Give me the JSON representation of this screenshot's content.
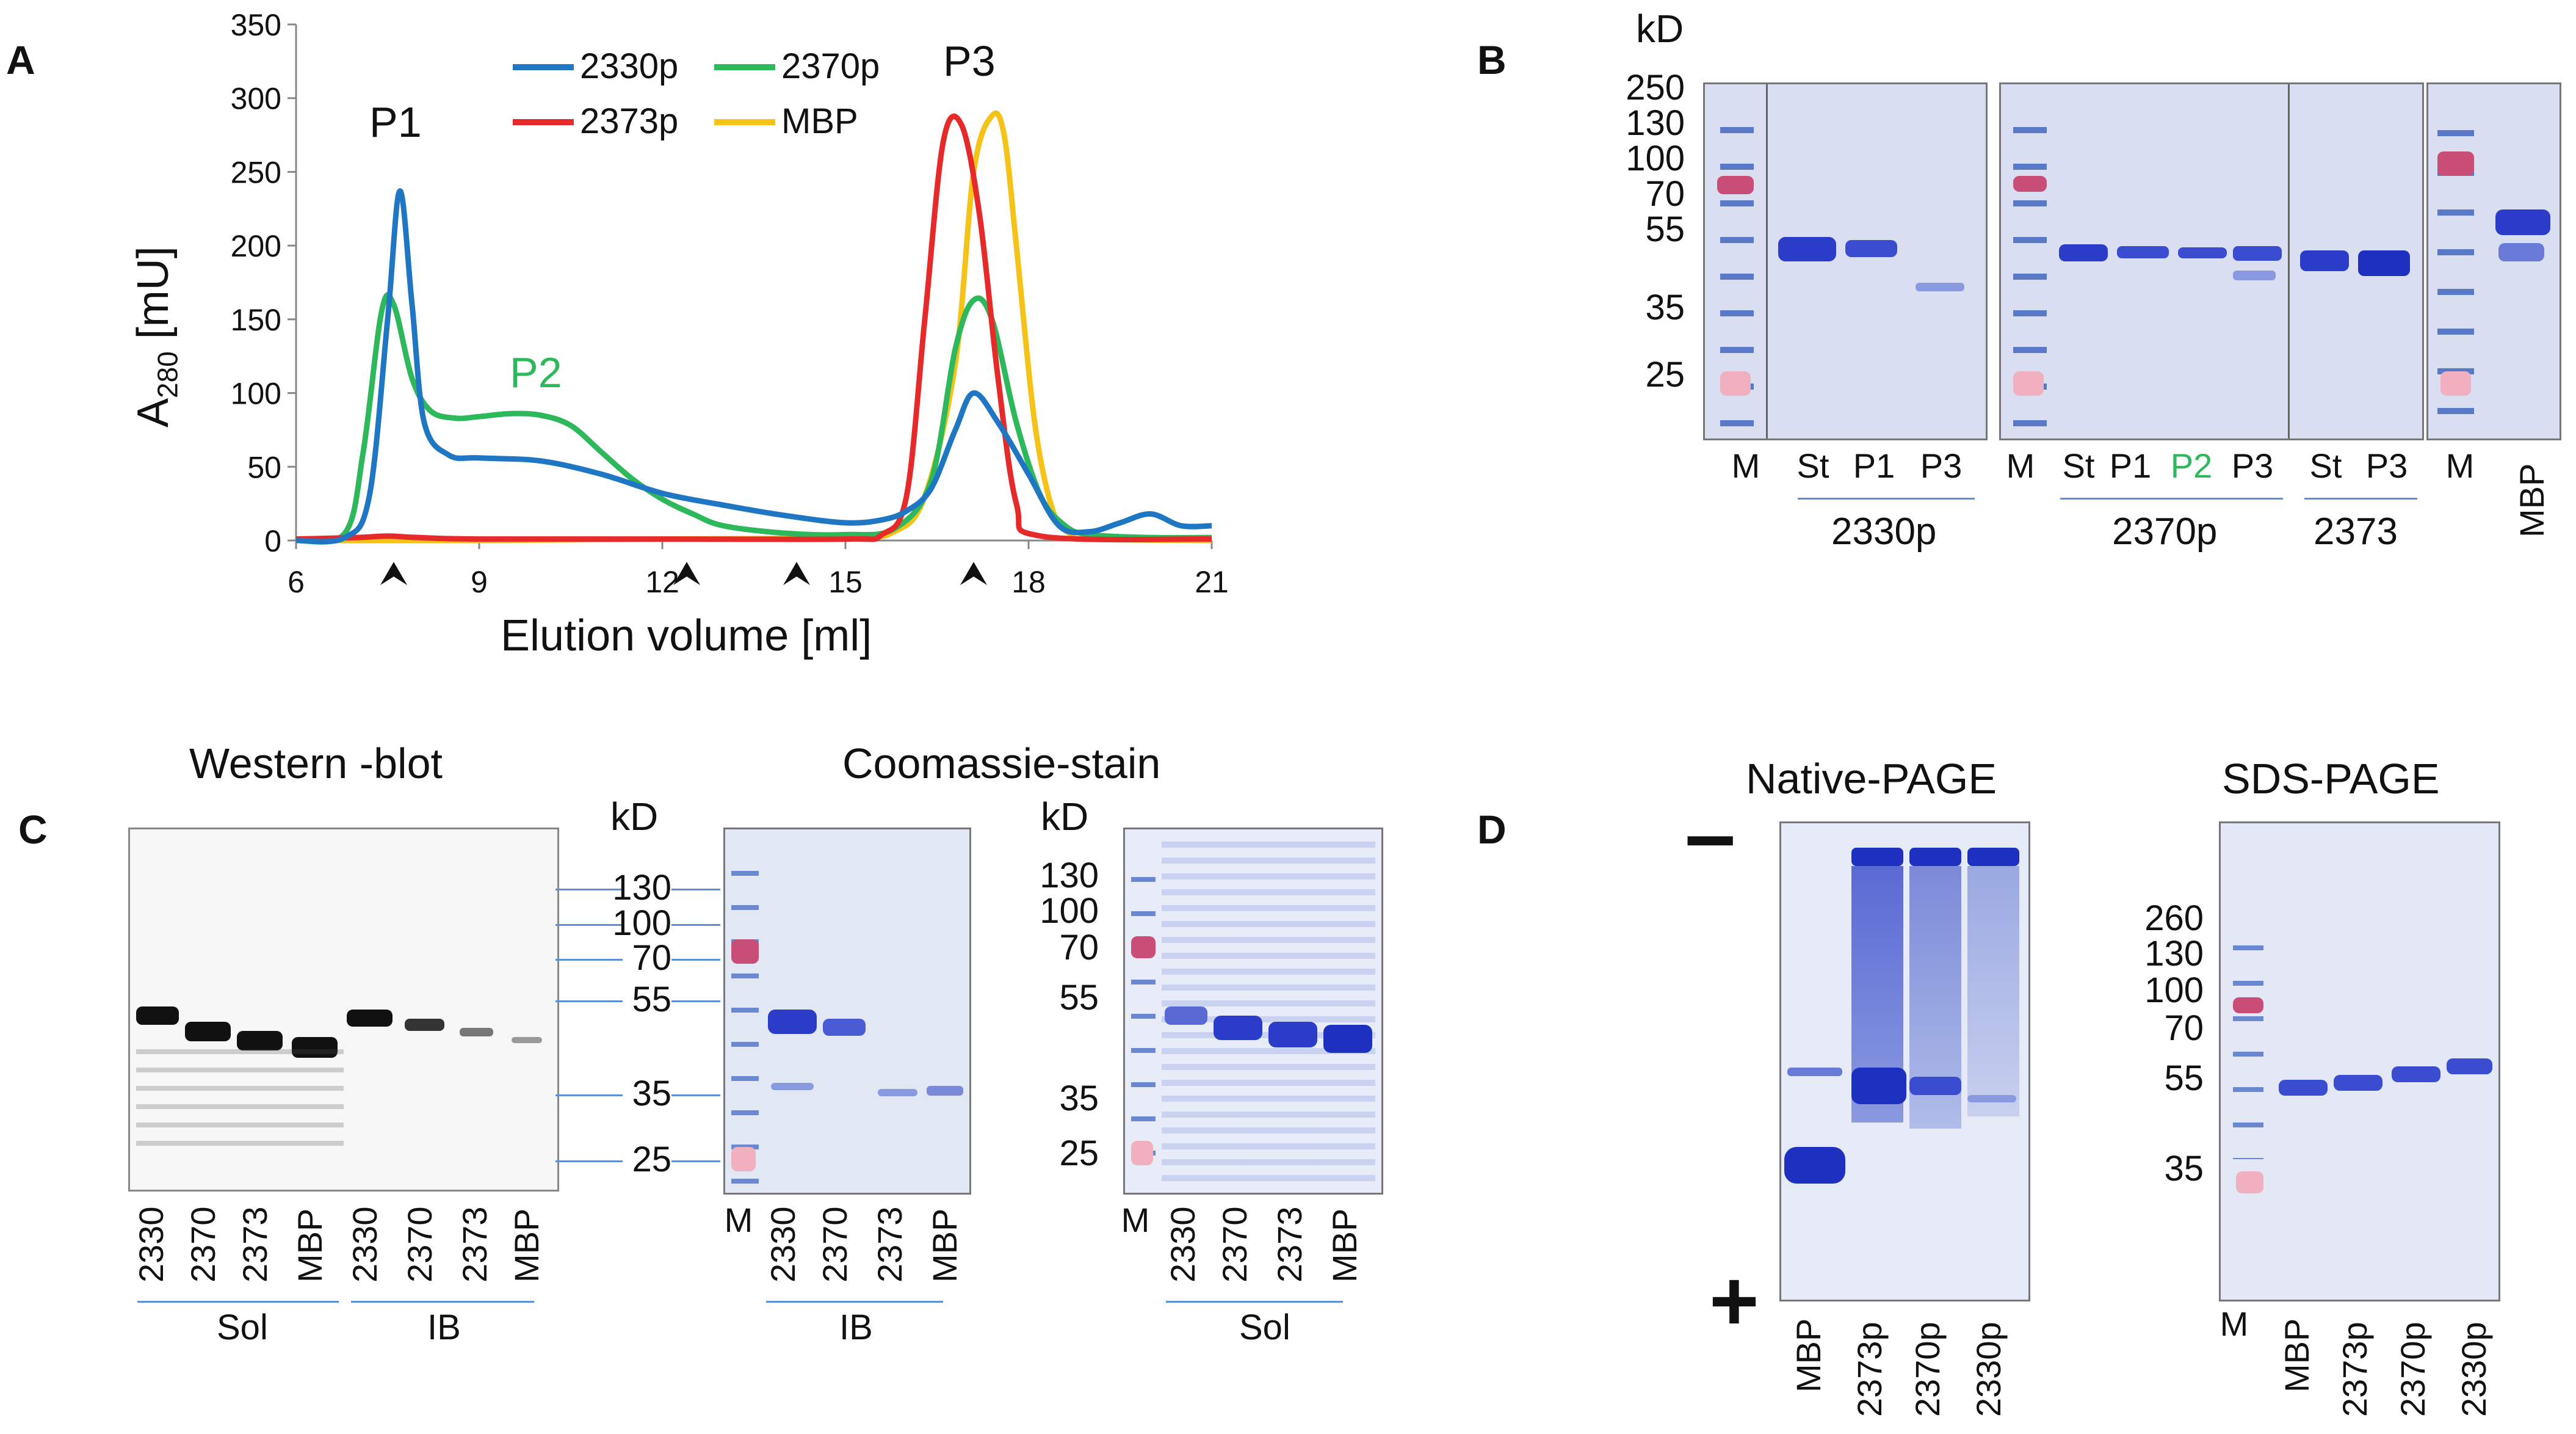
{
  "panel_a": {
    "letter": "A",
    "chart_data": {
      "type": "line",
      "title": "",
      "xlabel": "Elution volume [ml]",
      "ylabel": "A280 [mU]",
      "ylabel_main": "A",
      "ylabel_sub": "280",
      "ylabel_unit": " [mU]",
      "xlim": [
        6,
        21
      ],
      "ylim": [
        0,
        350
      ],
      "xticks": [
        6,
        9,
        12,
        15,
        18,
        21
      ],
      "yticks": [
        0,
        50,
        100,
        150,
        200,
        250,
        300,
        350
      ],
      "legend": [
        "2330p",
        "2370p",
        "2373p",
        "MBP"
      ],
      "peak_labels": [
        "P1",
        "P2",
        "P3"
      ],
      "arrow_markers_ml": [
        7.6,
        12.4,
        14.2,
        17.1
      ],
      "series": [
        {
          "name": "2330p",
          "color": "#1f77c4",
          "x": [
            6,
            6.8,
            7.2,
            7.5,
            7.7,
            7.9,
            8.1,
            8.5,
            9,
            10,
            11,
            12,
            13,
            14,
            15,
            15.6,
            16,
            16.4,
            16.8,
            17.1,
            17.5,
            18,
            18.5,
            19,
            19.5,
            20,
            20.5,
            21
          ],
          "y": [
            0,
            2,
            30,
            150,
            237,
            160,
            80,
            58,
            56,
            54,
            45,
            32,
            24,
            17,
            12,
            14,
            20,
            35,
            75,
            100,
            80,
            45,
            10,
            6,
            12,
            18,
            10,
            10
          ]
        },
        {
          "name": "2370p",
          "color": "#2eb85c",
          "x": [
            6,
            6.8,
            7.1,
            7.4,
            7.6,
            7.9,
            8.2,
            8.6,
            9,
            9.5,
            10,
            10.5,
            11,
            11.5,
            12,
            12.5,
            13,
            14,
            15,
            15.8,
            16.4,
            16.8,
            17.1,
            17.4,
            17.8,
            18.2,
            18.6,
            19,
            20,
            21
          ],
          "y": [
            0,
            5,
            60,
            155,
            160,
            110,
            88,
            83,
            84,
            86,
            85,
            78,
            60,
            42,
            28,
            18,
            10,
            5,
            4,
            8,
            40,
            130,
            163,
            150,
            80,
            30,
            10,
            4,
            2,
            2
          ]
        },
        {
          "name": "2373p",
          "color": "#e62a2a",
          "x": [
            6,
            7,
            7.5,
            8,
            9,
            12,
            15,
            15.6,
            16,
            16.3,
            16.6,
            16.9,
            17.2,
            17.5,
            17.8,
            18.2,
            21
          ],
          "y": [
            1,
            2,
            3,
            2,
            1,
            1,
            1,
            4,
            30,
            150,
            270,
            282,
            220,
            110,
            25,
            3,
            1
          ]
        },
        {
          "name": "MBP",
          "color": "#f5c318",
          "x": [
            6,
            9,
            12,
            15,
            15.8,
            16.3,
            16.8,
            17.1,
            17.4,
            17.6,
            17.8,
            18.1,
            18.4,
            18.7,
            19,
            21
          ],
          "y": [
            0,
            0,
            1,
            2,
            6,
            30,
            120,
            250,
            288,
            275,
            200,
            80,
            20,
            4,
            1,
            0
          ]
        }
      ]
    }
  },
  "panel_b": {
    "letter": "B",
    "unit": "kD",
    "markers": [
      "250",
      "130",
      "100",
      "70",
      "55",
      "35",
      "25"
    ],
    "lanes_1": [
      "M",
      "St",
      "P1",
      "P3"
    ],
    "group_1": "2330p",
    "lanes_2": [
      "M",
      "St",
      "P1",
      "P2",
      "P3"
    ],
    "group_2": "2370p",
    "lanes_3": [
      "St",
      "P3"
    ],
    "group_3": "2373",
    "lanes_4": [
      "M",
      "MBP"
    ],
    "p2_color": "#2eb85c"
  },
  "panel_c": {
    "letter": "C",
    "western_title": "Western -blot",
    "coomassie_title": "Coomassie-stain",
    "unit": "kD",
    "markers_wb": [
      "130",
      "100",
      "70",
      "55",
      "35",
      "25"
    ],
    "markers_cs": [
      "130",
      "100",
      "70",
      "55",
      "35",
      "25"
    ],
    "wb_lanes": [
      "2330",
      "2370",
      "2373",
      "MBP",
      "2330",
      "2370",
      "2373",
      "MBP"
    ],
    "wb_groups": [
      "Sol",
      "IB"
    ],
    "ib_lanes": [
      "M",
      "2330",
      "2370",
      "2373",
      "MBP"
    ],
    "ib_group": "IB",
    "sol_lanes": [
      "M",
      "2330",
      "2370",
      "2373",
      "MBP"
    ],
    "sol_group": "Sol"
  },
  "panel_d": {
    "letter": "D",
    "native_title": "Native-PAGE",
    "sds_title": "SDS-PAGE",
    "minus": "–",
    "plus": "+",
    "native_lanes": [
      "MBP",
      "2373p",
      "2370p",
      "2330p"
    ],
    "sds_lanes": [
      "M",
      "MBP",
      "2373p",
      "2370p",
      "2330p"
    ],
    "sds_markers": [
      "260",
      "130",
      "100",
      "70",
      "55",
      "35"
    ]
  }
}
